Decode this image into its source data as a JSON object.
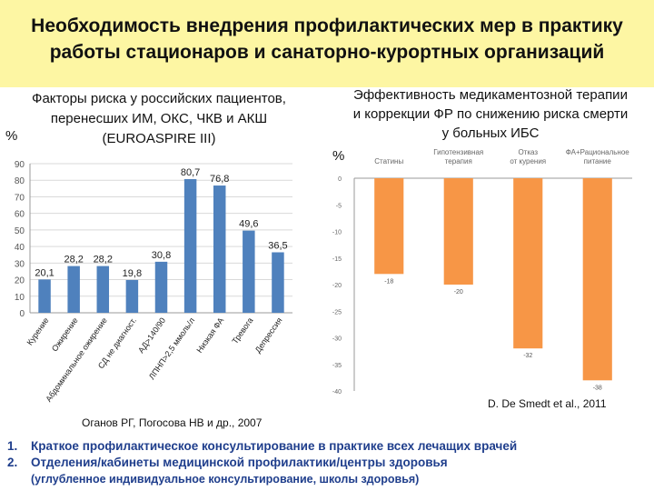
{
  "title": {
    "line1": "Необходимость внедрения профилактических мер в практику",
    "line2": "работы стационаров и санаторно-курортных организаций"
  },
  "left_heading": {
    "line1": "Факторы риска у российских пациентов,",
    "line2": "перенесших ИМ, ОКС, ЧКВ и АКШ",
    "line3": "(EUROASPIRE  III)"
  },
  "left_unit": "%",
  "left_source": "Оганов РГ, Погосова НВ и др., 2007",
  "right_heading": {
    "line1": "Эффективность медикаментозной терапии",
    "line2": "и коррекции ФР по снижению риска смерти",
    "line3": "у больных ИБС"
  },
  "right_unit": "%",
  "right_source": "D. De Smedt et al., 2011",
  "bottom_list": {
    "item1_num": "1.",
    "item1": "Краткое профилактическое консультирование в практике всех лечащих врачей",
    "item2_num": "2.",
    "item2": "Отделения/кабинеты медицинской профилактики/центры здоровья",
    "item2_sub": "(углубленное индивидуальное консультирование, школы здоровья)"
  },
  "colors": {
    "left_bar": "#4f81bd",
    "right_bar": "#f79646",
    "title_band": "#fdf6a3",
    "list_text": "#1f3e8c"
  },
  "chart_data": [
    {
      "type": "bar",
      "title": "Факторы риска у российских пациентов, перенесших ИМ, ОКС, ЧКВ и АКШ (EUROASPIRE III)",
      "ylabel": "%",
      "ylim": [
        0,
        90
      ],
      "yticks": [
        0,
        10,
        20,
        30,
        40,
        50,
        60,
        70,
        80,
        90
      ],
      "categories": [
        "Курение",
        "Ожирение",
        "Абдоминальное ожирение",
        "СД не диагност.",
        "АД>140/90",
        "ЛПНП>2,5 ммоль/л",
        "Низкая ФА",
        "Тревога",
        "Депрессия"
      ],
      "values": [
        20.1,
        28.2,
        28.2,
        19.8,
        30.8,
        80.7,
        76.8,
        49.6,
        36.5
      ],
      "labels": [
        "20,1",
        "28,2",
        "28,2",
        "19,8",
        "30,8",
        "80,7",
        "76,8",
        "49,6",
        "36,5"
      ]
    },
    {
      "type": "bar",
      "title": "Эффективность медикаментозной терапии и коррекции ФР по снижению риска смерти у больных ИБС",
      "ylabel": "%",
      "ylim": [
        -40,
        0
      ],
      "yticks": [
        0,
        -5,
        -10,
        -15,
        -20,
        -25,
        -30,
        -35,
        -40
      ],
      "categories": [
        "Статины",
        "Гипотензивная терапия",
        "Отказ от курения",
        "ФА+Рациональное питание"
      ],
      "values": [
        -18,
        -20,
        -32,
        -38
      ],
      "labels": [
        "-18",
        "-20",
        "-32",
        "-38"
      ]
    }
  ]
}
